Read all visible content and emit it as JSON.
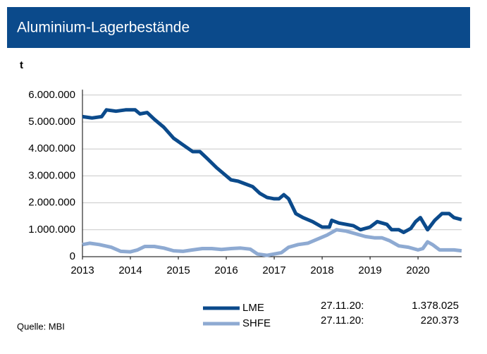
{
  "chart_data": {
    "type": "line",
    "title": "Aluminium-Lagerbestände",
    "y_label": "t",
    "source": "Quelle: MBI",
    "xlim": [
      2013,
      2020.91
    ],
    "xticks": [
      2013,
      2014,
      2015,
      2016,
      2017,
      2018,
      2019,
      2020
    ],
    "ylim": [
      0,
      6200000
    ],
    "yticks": [
      0,
      {
        "value": 1000000,
        "label": "1.000.000"
      },
      {
        "value": 2000000,
        "label": "2.000.000"
      },
      {
        "value": 3000000,
        "label": "3.000.000"
      },
      {
        "value": 4000000,
        "label": "4.000.000"
      },
      {
        "value": 5000000,
        "label": "5.000.000"
      },
      {
        "value": 6000000,
        "label": "6.000.000"
      }
    ],
    "grid": true,
    "series": [
      {
        "name": "LME",
        "color": "#0b4a8b",
        "x": [
          2013.0,
          2013.2,
          2013.4,
          2013.5,
          2013.7,
          2013.9,
          2014.1,
          2014.2,
          2014.35,
          2014.5,
          2014.7,
          2014.9,
          2015.1,
          2015.3,
          2015.45,
          2015.6,
          2015.8,
          2016.0,
          2016.1,
          2016.25,
          2016.4,
          2016.55,
          2016.7,
          2016.85,
          2017.0,
          2017.1,
          2017.2,
          2017.3,
          2017.45,
          2017.6,
          2017.8,
          2018.0,
          2018.15,
          2018.2,
          2018.35,
          2018.5,
          2018.65,
          2018.8,
          2019.0,
          2019.15,
          2019.35,
          2019.45,
          2019.6,
          2019.7,
          2019.85,
          2019.95,
          2020.05,
          2020.2,
          2020.35,
          2020.5,
          2020.65,
          2020.75,
          2020.91
        ],
        "values": [
          5200000,
          5150000,
          5200000,
          5450000,
          5400000,
          5450000,
          5450000,
          5300000,
          5350000,
          5100000,
          4800000,
          4400000,
          4150000,
          3900000,
          3900000,
          3650000,
          3300000,
          3000000,
          2850000,
          2800000,
          2700000,
          2600000,
          2350000,
          2200000,
          2150000,
          2150000,
          2300000,
          2150000,
          1600000,
          1450000,
          1300000,
          1100000,
          1100000,
          1350000,
          1250000,
          1200000,
          1150000,
          1000000,
          1100000,
          1300000,
          1200000,
          1000000,
          1000000,
          900000,
          1050000,
          1300000,
          1450000,
          1000000,
          1350000,
          1600000,
          1600000,
          1450000,
          1378025
        ]
      },
      {
        "name": "SHFE",
        "color": "#8eaad2",
        "x": [
          2013.0,
          2013.15,
          2013.35,
          2013.6,
          2013.8,
          2014.0,
          2014.15,
          2014.3,
          2014.5,
          2014.7,
          2014.9,
          2015.1,
          2015.3,
          2015.5,
          2015.7,
          2015.9,
          2016.1,
          2016.3,
          2016.5,
          2016.65,
          2016.85,
          2017.0,
          2017.15,
          2017.3,
          2017.5,
          2017.7,
          2017.9,
          2018.1,
          2018.3,
          2018.5,
          2018.7,
          2018.9,
          2019.1,
          2019.25,
          2019.4,
          2019.6,
          2019.8,
          2020.0,
          2020.1,
          2020.2,
          2020.3,
          2020.45,
          2020.6,
          2020.75,
          2020.91
        ],
        "values": [
          450000,
          500000,
          450000,
          350000,
          200000,
          180000,
          250000,
          380000,
          380000,
          320000,
          220000,
          200000,
          250000,
          300000,
          300000,
          270000,
          300000,
          320000,
          280000,
          100000,
          50000,
          100000,
          150000,
          350000,
          450000,
          500000,
          650000,
          800000,
          1000000,
          950000,
          850000,
          750000,
          700000,
          700000,
          600000,
          400000,
          350000,
          250000,
          300000,
          550000,
          450000,
          250000,
          250000,
          250000,
          220373
        ]
      }
    ],
    "annotations": [
      {
        "date": "27.11.20:",
        "value": "1.378.025"
      },
      {
        "date": "27.11.20:",
        "value": "220.373"
      }
    ]
  }
}
